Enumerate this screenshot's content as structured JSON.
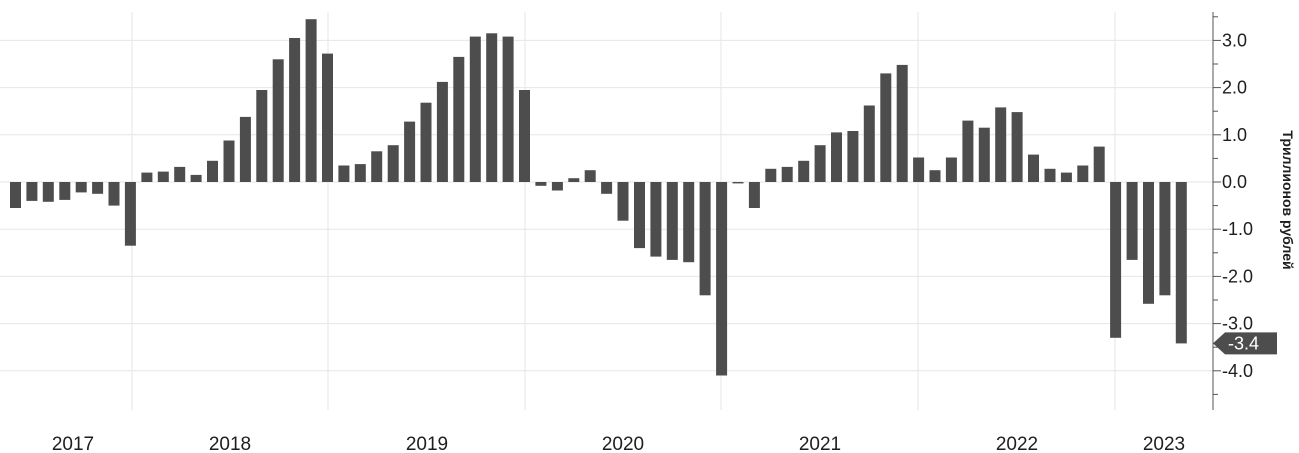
{
  "chart_data": {
    "type": "bar",
    "ylabel": "Триллионов рублей",
    "ylim": [
      -4.8,
      3.6
    ],
    "yticks": [
      3.0,
      2.0,
      1.0,
      0.0,
      -1.0,
      -2.0,
      -3.0,
      -4.0
    ],
    "ytick_labels": [
      "3.0",
      "2.0",
      "1.0",
      "0.0",
      "-1.0",
      "-2.0",
      "-3.0",
      "-4.0"
    ],
    "year_labels": [
      "2017",
      "2018",
      "2019",
      "2020",
      "2021",
      "2022",
      "2023"
    ],
    "grid": true,
    "last_value_label": "-3.4",
    "colors": {
      "bar": "#4d4d4d",
      "marker": "#4d4d4d",
      "grid": "#e6e6e6"
    },
    "values": [
      -0.55,
      -0.4,
      -0.42,
      -0.38,
      -0.22,
      -0.25,
      -0.5,
      -1.35,
      0.2,
      0.22,
      0.32,
      0.15,
      0.45,
      0.88,
      1.38,
      1.95,
      2.6,
      3.05,
      3.45,
      2.72,
      0.35,
      0.38,
      0.65,
      0.78,
      1.28,
      1.68,
      2.12,
      2.65,
      3.08,
      3.15,
      3.08,
      1.95,
      -0.08,
      -0.18,
      0.08,
      0.25,
      -0.25,
      -0.82,
      -1.4,
      -1.58,
      -1.65,
      -1.7,
      -2.4,
      -4.1,
      -0.03,
      -0.55,
      0.28,
      0.32,
      0.45,
      0.78,
      1.05,
      1.08,
      1.62,
      2.3,
      2.48,
      0.52,
      0.25,
      0.52,
      1.3,
      1.15,
      1.58,
      1.48,
      0.58,
      0.28,
      0.2,
      0.35,
      0.75,
      -3.3,
      -1.65,
      -2.58,
      -2.4,
      -3.42
    ]
  }
}
